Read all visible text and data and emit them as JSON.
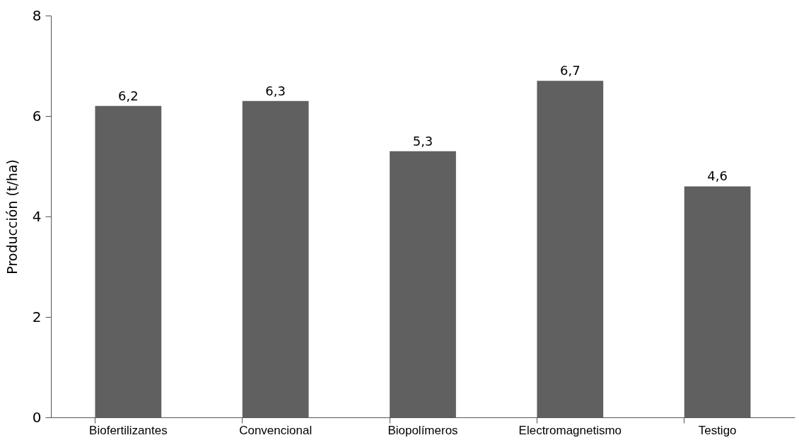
{
  "chart_data": {
    "type": "bar",
    "ylabel": "Producción (t/ha)",
    "categories": [
      "Biofertilizantes",
      "Convencional",
      "Biopolímeros",
      "Electromagnetismo",
      "Testigo"
    ],
    "values": [
      6.2,
      6.3,
      5.3,
      6.7,
      4.6
    ],
    "value_labels": [
      "6,2",
      "6,3",
      "5,3",
      "6,7",
      "4,6"
    ],
    "color": "#606060",
    "ylim": [
      0,
      8
    ],
    "yticks": [
      0,
      2,
      4,
      6,
      8
    ],
    "grid": false
  }
}
